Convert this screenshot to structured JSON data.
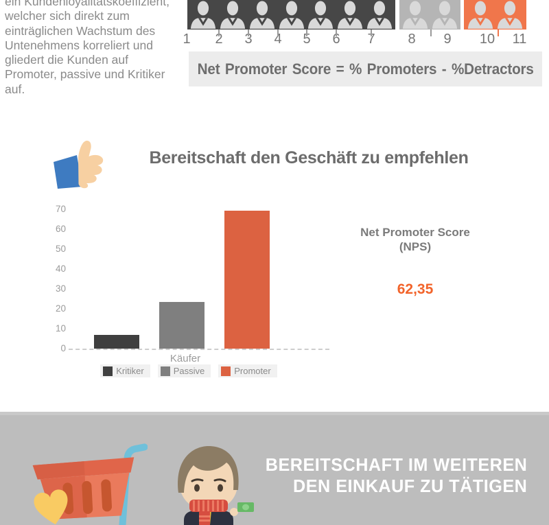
{
  "intro": {
    "text": "ein Kundenloyalitätskoeffizient,\nwelcher sich direkt zum\neinträglichen Wachstum des\nUntenehmens korreliert und\ngliedert die Kunden auf\nPromoter, passive und Kritiker\nauf."
  },
  "nps_scale": {
    "numbers": [
      "1",
      "2",
      "3",
      "4",
      "5",
      "6",
      "7",
      "8",
      "9",
      "10",
      "11"
    ],
    "groups": [
      {
        "name": "Detractors",
        "count": 7,
        "color": "#474747",
        "range": "1-7"
      },
      {
        "name": "Passives",
        "count": 2,
        "color": "#B5B5B5",
        "range": "8-9"
      },
      {
        "name": "Promoters",
        "count": 2,
        "color": "#F0764B",
        "range": "10-11"
      }
    ],
    "icon": "person-icon",
    "icon_color": "#D9D9D9",
    "formula": "Net Promoter Score = % Promoters - %Detractors"
  },
  "recommend": {
    "icon": "thumbs-up-icon",
    "title": "Bereitschaft den Geschäft zu empfehlen",
    "nps_label_line1": "Net Promoter Score",
    "nps_label_line2": "(NPS)",
    "nps_value": "62,35",
    "nps_value_color": "#F2642B"
  },
  "chart_data": {
    "type": "bar",
    "title": "Bereitschaft den Geschäft zu empfehlen",
    "categories": [
      "Käufer"
    ],
    "series": [
      {
        "name": "Kritiker",
        "color": "#3F3F3F",
        "values": [
          7.06
        ]
      },
      {
        "name": "Passive",
        "color": "#7F7F7F",
        "values": [
          23.53
        ]
      },
      {
        "name": "Promoter",
        "color": "#DC6241",
        "values": [
          69.41
        ]
      }
    ],
    "xlabel": "Käufer",
    "ylabel": "",
    "ylim": [
      0,
      70
    ],
    "yticks": [
      0,
      10,
      20,
      30,
      40,
      50,
      60,
      70
    ],
    "grid": false,
    "baseline_style": "dashed",
    "legend_position": "bottom"
  },
  "purchase": {
    "heading_line1": "BEREITSCHAFT IM WEITEREN",
    "heading_line2": "DEN EINKAUF ZU TÄTIGEN",
    "icons": [
      "shopping-basket-icon",
      "heart-icon",
      "shopper-character-icon",
      "money-bill-icon"
    ],
    "background": "#BDBDBD"
  }
}
